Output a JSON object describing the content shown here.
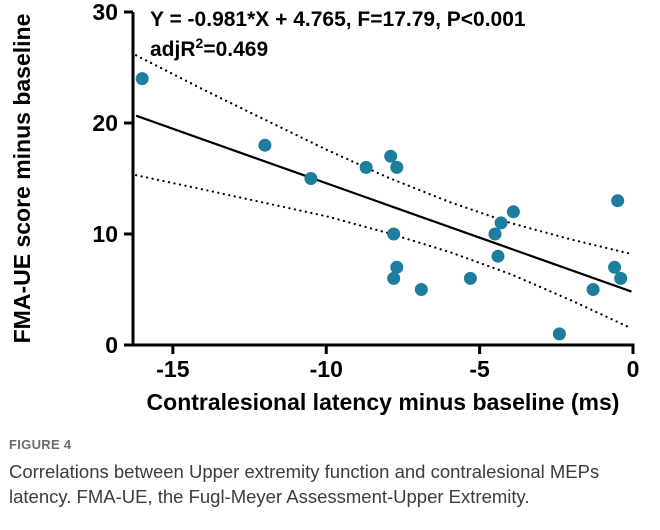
{
  "chart_data": {
    "type": "scatter",
    "title": "",
    "xlabel": "Contralesional latency minus baseline (ms)",
    "ylabel": "FMA-UE score minus baseline",
    "xlim": [
      -16.3,
      0
    ],
    "ylim": [
      0,
      30
    ],
    "x_ticks": [
      -15,
      -10,
      -5,
      0
    ],
    "y_ticks": [
      0,
      10,
      20,
      30
    ],
    "grid": false,
    "legend": "none",
    "point_color": "#1d7d9f",
    "line_color": "#000000",
    "annotation_line1": "Y = -0.981*X + 4.765, F=17.79, P<0.001",
    "annotation_line2": {
      "prefix": "adjR",
      "sup": "2",
      "suffix": "=0.469"
    },
    "points": [
      [
        -16.0,
        24
      ],
      [
        -12.0,
        18
      ],
      [
        -10.5,
        15
      ],
      [
        -8.7,
        16
      ],
      [
        -7.9,
        17
      ],
      [
        -7.7,
        16
      ],
      [
        -7.8,
        10
      ],
      [
        -7.7,
        7
      ],
      [
        -7.8,
        6
      ],
      [
        -6.9,
        5
      ],
      [
        -5.3,
        6
      ],
      [
        -4.5,
        10
      ],
      [
        -4.3,
        11
      ],
      [
        -4.4,
        8
      ],
      [
        -3.9,
        12
      ],
      [
        -2.4,
        1
      ],
      [
        -1.3,
        5
      ],
      [
        -0.5,
        13
      ],
      [
        -0.6,
        7
      ],
      [
        -0.4,
        6
      ]
    ],
    "regression": {
      "slope": -0.981,
      "intercept": 4.765,
      "x_start": -16.2,
      "x_end": -0.05
    },
    "ci_upper": [
      [
        -16.2,
        26.1
      ],
      [
        -14,
        23.0
      ],
      [
        -12,
        20.3
      ],
      [
        -10,
        17.6
      ],
      [
        -8,
        15.1
      ],
      [
        -6,
        12.9
      ],
      [
        -4,
        11.0
      ],
      [
        -2,
        9.5
      ],
      [
        -0.05,
        8.2
      ]
    ],
    "ci_lower": [
      [
        -16.2,
        15.3
      ],
      [
        -14,
        14.0
      ],
      [
        -12,
        12.8
      ],
      [
        -10,
        11.6
      ],
      [
        -8,
        10.1
      ],
      [
        -6,
        8.4
      ],
      [
        -4,
        6.4
      ],
      [
        -2,
        4.0
      ],
      [
        -0.05,
        1.5
      ]
    ]
  },
  "caption": {
    "label": "FIGURE 4",
    "text": "Correlations between Upper extremity function and contralesional MEPs latency. FMA-UE, the Fugl-Meyer Assessment-Upper Extremity."
  }
}
